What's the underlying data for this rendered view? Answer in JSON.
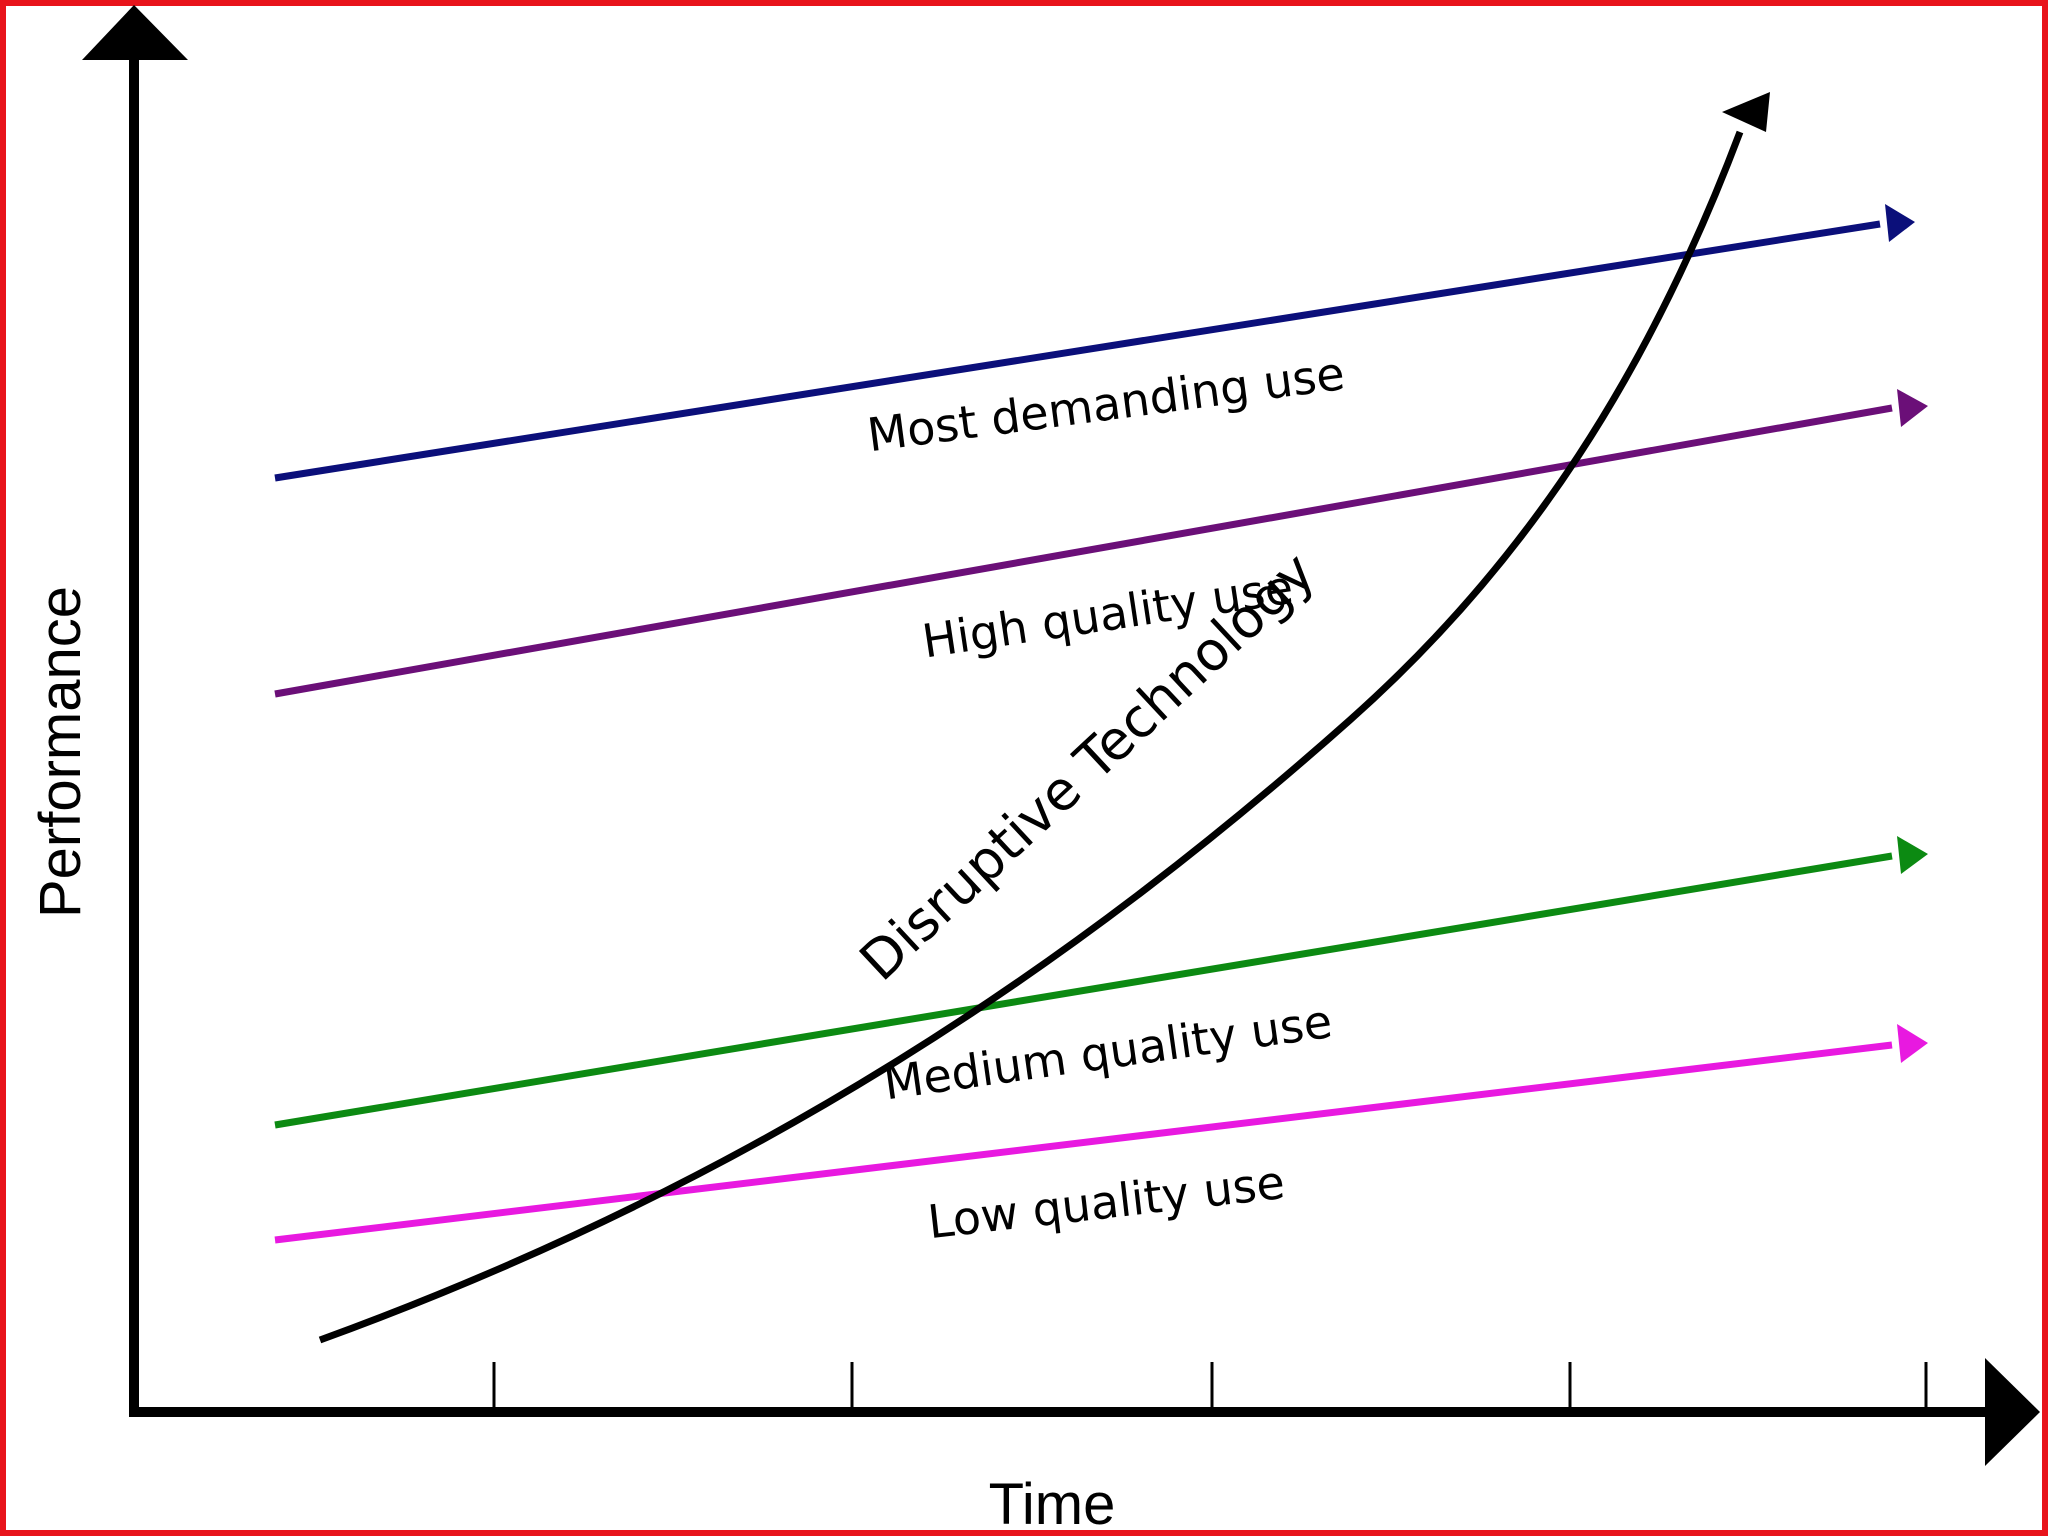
{
  "axes": {
    "x_label": "Time",
    "y_label": "Performance"
  },
  "curve": {
    "label": "Disruptive Technology",
    "color": "#000000"
  },
  "lines": [
    {
      "label": "Most demanding use",
      "color": "#0b0f7a"
    },
    {
      "label": "High quality use",
      "color": "#6b0f78"
    },
    {
      "label": "Medium quality use",
      "color": "#0c8a12"
    },
    {
      "label": "Low quality use",
      "color": "#e819e0"
    }
  ],
  "colors": {
    "frame": "#e8141b",
    "axis": "#000000"
  }
}
